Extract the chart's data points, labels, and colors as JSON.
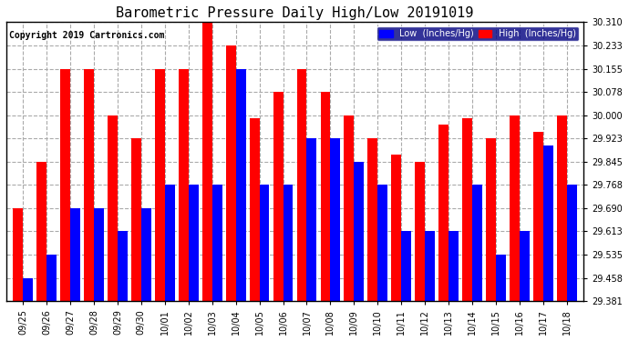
{
  "title": "Barometric Pressure Daily High/Low 20191019",
  "copyright": "Copyright 2019 Cartronics.com",
  "dates": [
    "09/25",
    "09/26",
    "09/27",
    "09/28",
    "09/29",
    "09/30",
    "10/01",
    "10/02",
    "10/03",
    "10/04",
    "10/05",
    "10/06",
    "10/07",
    "10/08",
    "10/09",
    "10/10",
    "10/11",
    "10/12",
    "10/13",
    "10/14",
    "10/15",
    "10/16",
    "10/17",
    "10/18"
  ],
  "high_values": [
    29.69,
    29.845,
    30.155,
    30.155,
    30.0,
    29.923,
    30.155,
    30.155,
    30.31,
    30.233,
    29.99,
    30.078,
    30.155,
    30.078,
    30.0,
    29.923,
    29.868,
    29.845,
    29.968,
    29.99,
    29.923,
    30.0,
    29.945,
    30.0
  ],
  "low_values": [
    29.458,
    29.535,
    29.69,
    29.69,
    29.613,
    29.69,
    29.768,
    29.768,
    29.768,
    30.155,
    29.768,
    29.768,
    29.923,
    29.923,
    29.845,
    29.768,
    29.613,
    29.613,
    29.613,
    29.768,
    29.535,
    29.613,
    29.9,
    29.768
  ],
  "high_color": "#ff0000",
  "low_color": "#0000ff",
  "bg_color": "#ffffff",
  "grid_color": "#aaaaaa",
  "ylim_min": 29.381,
  "ylim_max": 30.31,
  "yticks": [
    29.381,
    29.458,
    29.535,
    29.613,
    29.69,
    29.768,
    29.845,
    29.923,
    30.0,
    30.078,
    30.155,
    30.233,
    30.31
  ],
  "title_fontsize": 11,
  "copyright_fontsize": 7,
  "legend_low_label": "Low  (Inches/Hg)",
  "legend_high_label": "High  (Inches/Hg)",
  "bar_width": 0.42
}
